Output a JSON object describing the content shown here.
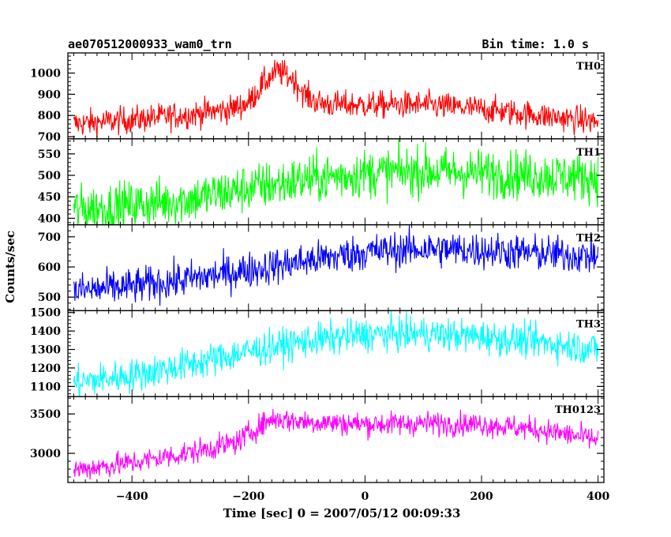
{
  "header": {
    "left": "ae070512000933_wam0_trn",
    "right": "Bin time: 1.0 s"
  },
  "chart_data": {
    "type": "line",
    "xlabel": "Time [sec] 0 = 2007/05/12 00:09:33",
    "ylabel": "Counts/sec",
    "xlim": [
      -510,
      410
    ],
    "xticks": [
      -400,
      -200,
      0,
      200,
      400
    ],
    "bin_time_s": 1.0,
    "panels": [
      {
        "name": "TH0",
        "color": "#ff0000",
        "ylim": [
          690,
          1095
        ],
        "yticks": [
          700,
          800,
          900,
          1000
        ],
        "profile": {
          "t": [
            -500,
            -400,
            -300,
            -230,
            -200,
            -175,
            -150,
            -125,
            -100,
            -80,
            -50,
            0,
            100,
            200,
            300,
            400
          ],
          "v": [
            760,
            780,
            805,
            830,
            860,
            950,
            1010,
            975,
            890,
            860,
            850,
            850,
            850,
            830,
            800,
            770
          ]
        },
        "noise_sd": 32
      },
      {
        "name": "TH1",
        "color": "#00ff00",
        "ylim": [
          385,
          585
        ],
        "yticks": [
          400,
          450,
          500,
          550
        ],
        "profile": {
          "t": [
            -500,
            -400,
            -300,
            -200,
            -100,
            0,
            100,
            200,
            300,
            400
          ],
          "v": [
            420,
            430,
            445,
            470,
            490,
            505,
            510,
            505,
            500,
            495
          ]
        },
        "noise_sd": 28
      },
      {
        "name": "TH2",
        "color": "#0000ff",
        "ylim": [
          455,
          740
        ],
        "yticks": [
          500,
          600,
          700
        ],
        "profile": {
          "t": [
            -500,
            -400,
            -300,
            -200,
            -100,
            0,
            100,
            200,
            300,
            400
          ],
          "v": [
            520,
            535,
            560,
            590,
            620,
            650,
            660,
            655,
            645,
            635
          ]
        },
        "noise_sd": 30
      },
      {
        "name": "TH3",
        "color": "#00ffff",
        "ylim": [
          1045,
          1510
        ],
        "yticks": [
          1100,
          1200,
          1300,
          1400,
          1500
        ],
        "profile": {
          "t": [
            -500,
            -400,
            -300,
            -200,
            -100,
            0,
            100,
            200,
            300,
            400
          ],
          "v": [
            1120,
            1160,
            1220,
            1290,
            1345,
            1380,
            1385,
            1370,
            1340,
            1300
          ]
        },
        "noise_sd": 45
      },
      {
        "name": "TH0123",
        "color": "#ff00ff",
        "ylim": [
          2630,
          3720
        ],
        "yticks": [
          3000,
          3500
        ],
        "profile": {
          "t": [
            -500,
            -400,
            -300,
            -220,
            -190,
            -160,
            -100,
            0,
            100,
            200,
            300,
            400
          ],
          "v": [
            2790,
            2880,
            3010,
            3140,
            3300,
            3440,
            3400,
            3370,
            3380,
            3370,
            3300,
            3170
          ]
        },
        "noise_sd": 75
      }
    ]
  }
}
